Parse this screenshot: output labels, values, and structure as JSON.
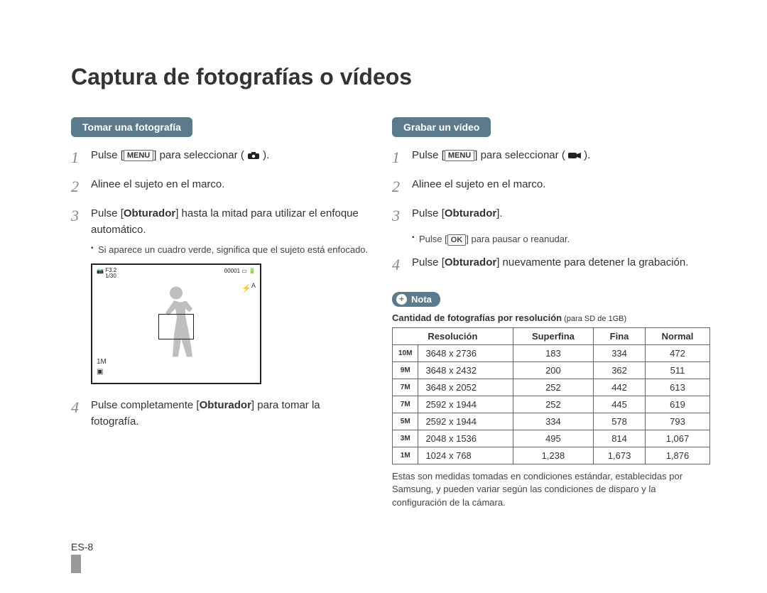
{
  "page_title": "Captura de fotografías o vídeos",
  "page_number": "ES-8",
  "left": {
    "tab": "Tomar una fotografía",
    "steps": [
      {
        "n": "1",
        "pre": "Pulse [",
        "btn": "MENU",
        "mid": "] para seleccionar ( ",
        "icon": "camera",
        "post": " )."
      },
      {
        "n": "2",
        "text": "Alinee el sujeto en el marco."
      },
      {
        "n": "3",
        "html": "Pulse [<b>Obturador</b>] hasta la mitad para utilizar el enfoque automático."
      },
      {
        "n": "4",
        "html": "Pulse completamente [<b>Obturador</b>] para tomar la fotografía."
      }
    ],
    "step3_sub": "Si aparece un cuadro verde, significa que el sujeto está enfocado.",
    "lcd": {
      "top_left_line1": "F3.2",
      "top_left_line2": "1/30",
      "top_right": "00001",
      "flash": "A",
      "bottom_left_1": "1M",
      "bottom_left_2": "▣"
    }
  },
  "right": {
    "tab": "Grabar un vídeo",
    "steps": [
      {
        "n": "1",
        "pre": "Pulse [",
        "btn": "MENU",
        "mid": "] para seleccionar ( ",
        "icon": "video",
        "post": " )."
      },
      {
        "n": "2",
        "text": "Alinee el sujeto en el marco."
      },
      {
        "n": "3",
        "html": "Pulse [<b>Obturador</b>]."
      },
      {
        "n": "4",
        "html": "Pulse [<b>Obturador</b>] nuevamente para detener la grabación."
      }
    ],
    "step3_sub_pre": "Pulse [",
    "step3_sub_btn": "OK",
    "step3_sub_post": "] para pausar o reanudar.",
    "nota_label": "Nota",
    "table_caption_bold": "Cantidad de fotografías por resolución",
    "table_caption_sub": " (para SD de 1GB)",
    "table": {
      "headers": [
        "Resolución",
        "Superfina",
        "Fina",
        "Normal"
      ],
      "rows": [
        {
          "icon": "10M",
          "dim": "3648 x 2736",
          "sf": "183",
          "f": "334",
          "n": "472"
        },
        {
          "icon": "9M",
          "dim": "3648 x 2432",
          "sf": "200",
          "f": "362",
          "n": "511"
        },
        {
          "icon": "7M",
          "dim": "3648 x 2052",
          "sf": "252",
          "f": "442",
          "n": "613"
        },
        {
          "icon": "7M",
          "dim": "2592 x 1944",
          "sf": "252",
          "f": "445",
          "n": "619"
        },
        {
          "icon": "5M",
          "dim": "2592 x 1944",
          "sf": "334",
          "f": "578",
          "n": "793"
        },
        {
          "icon": "3M",
          "dim": "2048 x 1536",
          "sf": "495",
          "f": "814",
          "n": "1,067"
        },
        {
          "icon": "1M",
          "dim": "1024 x 768",
          "sf": "1,238",
          "f": "1,673",
          "n": "1,876"
        }
      ]
    },
    "table_footnote": "Estas son medidas tomadas en condiciones estándar, establecidas por Samsung, y pueden variar según las condiciones de disparo y la configuración de la cámara."
  },
  "colors": {
    "tab_bg": "#5b7a8c",
    "text": "#333333",
    "step_num": "#888888",
    "border": "#666666"
  }
}
